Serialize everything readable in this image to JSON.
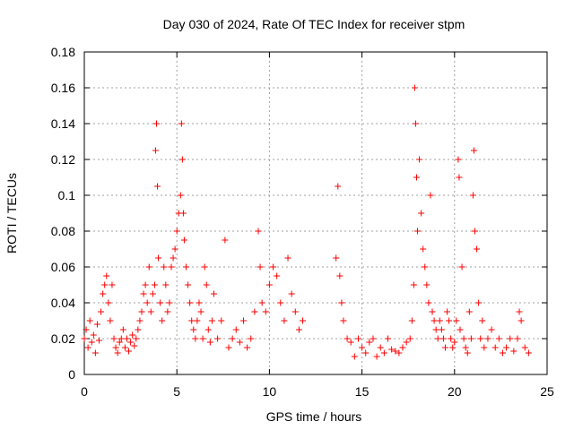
{
  "chart_data": {
    "type": "scatter",
    "title": "Day 030 of 2024, Rate Of TEC Index for receiver stpm",
    "xlabel": "GPS time / hours",
    "ylabel": "ROTI / TECUs",
    "xlim": [
      0,
      25
    ],
    "ylim": [
      0,
      0.18
    ],
    "xticks": [
      "0",
      "5",
      "10",
      "15",
      "20",
      "25"
    ],
    "yticks": [
      "0",
      "0.02",
      "0.04",
      "0.06",
      "0.08",
      "0.1",
      "0.12",
      "0.14",
      "0.16",
      "0.18"
    ],
    "grid": true,
    "marker": "+",
    "color": "#ff0000",
    "series": [
      {
        "values_x": [
          0.0,
          0.1,
          0.2,
          0.3,
          0.4,
          0.5,
          0.6,
          0.7,
          0.8,
          0.9,
          1.0,
          1.1,
          1.2,
          1.3,
          1.4,
          1.5,
          1.6,
          1.7,
          1.8,
          1.9,
          2.0,
          2.1,
          2.2,
          2.3,
          2.4,
          2.5,
          2.6,
          2.7,
          2.8,
          2.9,
          3.0,
          3.1,
          3.2,
          3.3,
          3.4,
          3.5,
          3.6,
          3.7,
          3.8,
          3.85,
          3.9,
          3.95,
          4.0,
          4.1,
          4.2,
          4.3,
          4.4,
          4.5,
          4.6,
          4.7,
          4.8,
          4.9,
          5.0,
          5.1,
          5.2,
          5.25,
          5.3,
          5.35,
          5.4,
          5.5,
          5.6,
          5.7,
          5.8,
          5.9,
          6.0,
          6.1,
          6.2,
          6.3,
          6.4,
          6.5,
          6.6,
          6.7,
          6.8,
          6.9,
          7.0,
          7.2,
          7.4,
          7.6,
          7.8,
          8.0,
          8.2,
          8.4,
          8.6,
          8.8,
          9.0,
          9.2,
          9.4,
          9.5,
          9.6,
          9.8,
          10.0,
          10.2,
          10.4,
          10.6,
          10.8,
          11.0,
          11.2,
          11.4,
          11.6,
          11.8,
          13.6,
          13.7,
          13.8,
          13.9,
          14.0,
          14.2,
          14.4,
          14.6,
          14.8,
          15.0,
          15.2,
          15.4,
          15.6,
          15.8,
          16.0,
          16.2,
          16.4,
          16.6,
          16.8,
          17.0,
          17.2,
          17.4,
          17.6,
          17.7,
          17.8,
          17.85,
          17.9,
          17.95,
          18.0,
          18.1,
          18.2,
          18.3,
          18.4,
          18.5,
          18.6,
          18.7,
          18.8,
          18.9,
          19.0,
          19.1,
          19.2,
          19.3,
          19.4,
          19.5,
          19.6,
          19.7,
          19.8,
          19.9,
          20.0,
          20.1,
          20.2,
          20.25,
          20.3,
          20.4,
          20.5,
          20.6,
          20.7,
          20.8,
          20.9,
          21.0,
          21.05,
          21.1,
          21.2,
          21.3,
          21.4,
          21.5,
          21.6,
          21.8,
          22.0,
          22.2,
          22.4,
          22.6,
          22.8,
          23.0,
          23.2,
          23.4,
          23.5,
          23.6,
          23.8,
          24.0
        ],
        "values_y": [
          0.02,
          0.025,
          0.015,
          0.03,
          0.018,
          0.022,
          0.012,
          0.028,
          0.019,
          0.035,
          0.045,
          0.05,
          0.055,
          0.04,
          0.03,
          0.05,
          0.02,
          0.015,
          0.012,
          0.018,
          0.02,
          0.025,
          0.015,
          0.02,
          0.013,
          0.018,
          0.022,
          0.016,
          0.02,
          0.025,
          0.03,
          0.035,
          0.045,
          0.05,
          0.04,
          0.06,
          0.035,
          0.045,
          0.05,
          0.125,
          0.14,
          0.105,
          0.065,
          0.04,
          0.03,
          0.06,
          0.05,
          0.035,
          0.04,
          0.06,
          0.065,
          0.07,
          0.08,
          0.09,
          0.1,
          0.14,
          0.12,
          0.09,
          0.075,
          0.06,
          0.05,
          0.04,
          0.03,
          0.025,
          0.02,
          0.03,
          0.04,
          0.035,
          0.02,
          0.06,
          0.05,
          0.025,
          0.018,
          0.03,
          0.045,
          0.02,
          0.03,
          0.075,
          0.015,
          0.02,
          0.025,
          0.018,
          0.03,
          0.015,
          0.02,
          0.035,
          0.08,
          0.06,
          0.04,
          0.035,
          0.05,
          0.06,
          0.055,
          0.04,
          0.03,
          0.065,
          0.045,
          0.035,
          0.025,
          0.03,
          0.065,
          0.105,
          0.055,
          0.04,
          0.03,
          0.02,
          0.018,
          0.01,
          0.02,
          0.015,
          0.012,
          0.018,
          0.02,
          0.01,
          0.015,
          0.012,
          0.02,
          0.014,
          0.013,
          0.012,
          0.015,
          0.018,
          0.02,
          0.03,
          0.05,
          0.16,
          0.14,
          0.11,
          0.08,
          0.12,
          0.09,
          0.07,
          0.06,
          0.05,
          0.04,
          0.1,
          0.035,
          0.03,
          0.025,
          0.02,
          0.03,
          0.025,
          0.02,
          0.015,
          0.035,
          0.03,
          0.02,
          0.015,
          0.018,
          0.03,
          0.12,
          0.11,
          0.025,
          0.06,
          0.02,
          0.015,
          0.012,
          0.035,
          0.02,
          0.1,
          0.125,
          0.08,
          0.07,
          0.04,
          0.02,
          0.03,
          0.015,
          0.02,
          0.025,
          0.015,
          0.02,
          0.012,
          0.015,
          0.02,
          0.013,
          0.02,
          0.035,
          0.03,
          0.015,
          0.012
        ]
      }
    ]
  }
}
